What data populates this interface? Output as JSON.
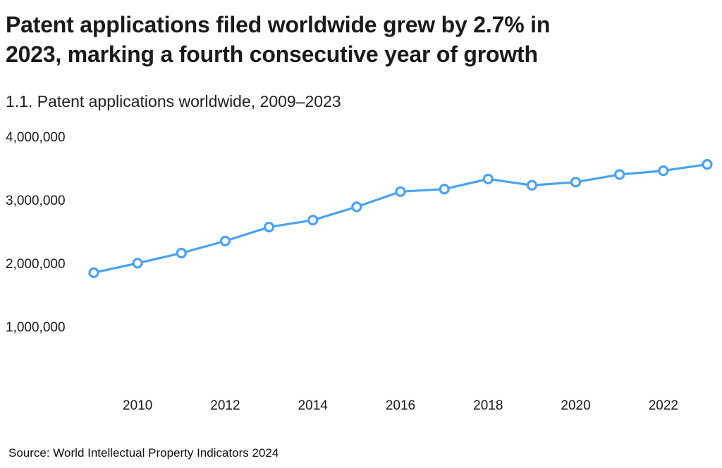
{
  "header": {
    "title_lines": [
      "Patent applications filed worldwide grew by 2.7% in",
      "2023, marking a fourth consecutive year of growth"
    ],
    "subtitle": "1.1. Patent applications worldwide, 2009–2023"
  },
  "source": "Source: World Intellectual Property Indicators 2024",
  "colors": {
    "line": "#4aa3f0",
    "marker_fill": "#ffffff",
    "axis_text": "#1a1a1a"
  },
  "chart_data": {
    "type": "line",
    "title": "1.1. Patent applications worldwide, 2009–2023",
    "xlabel": "",
    "ylabel": "",
    "x": [
      2009,
      2010,
      2011,
      2012,
      2013,
      2014,
      2015,
      2016,
      2017,
      2018,
      2019,
      2020,
      2021,
      2022,
      2023
    ],
    "series": [
      {
        "name": "Patent applications worldwide",
        "values": [
          1850000,
          2000000,
          2160000,
          2350000,
          2570000,
          2680000,
          2890000,
          3130000,
          3170000,
          3330000,
          3230000,
          3280000,
          3400000,
          3460000,
          3560000
        ]
      }
    ],
    "ylim": [
      0,
      4000000
    ],
    "yticks": [
      1000000,
      2000000,
      3000000,
      4000000
    ],
    "ytick_labels": [
      "1,000,000",
      "2,000,000",
      "3,000,000",
      "4,000,000"
    ],
    "xticks": [
      2010,
      2012,
      2014,
      2016,
      2018,
      2020,
      2022
    ],
    "grid": false,
    "legend": "none",
    "marker": "open-circle"
  }
}
